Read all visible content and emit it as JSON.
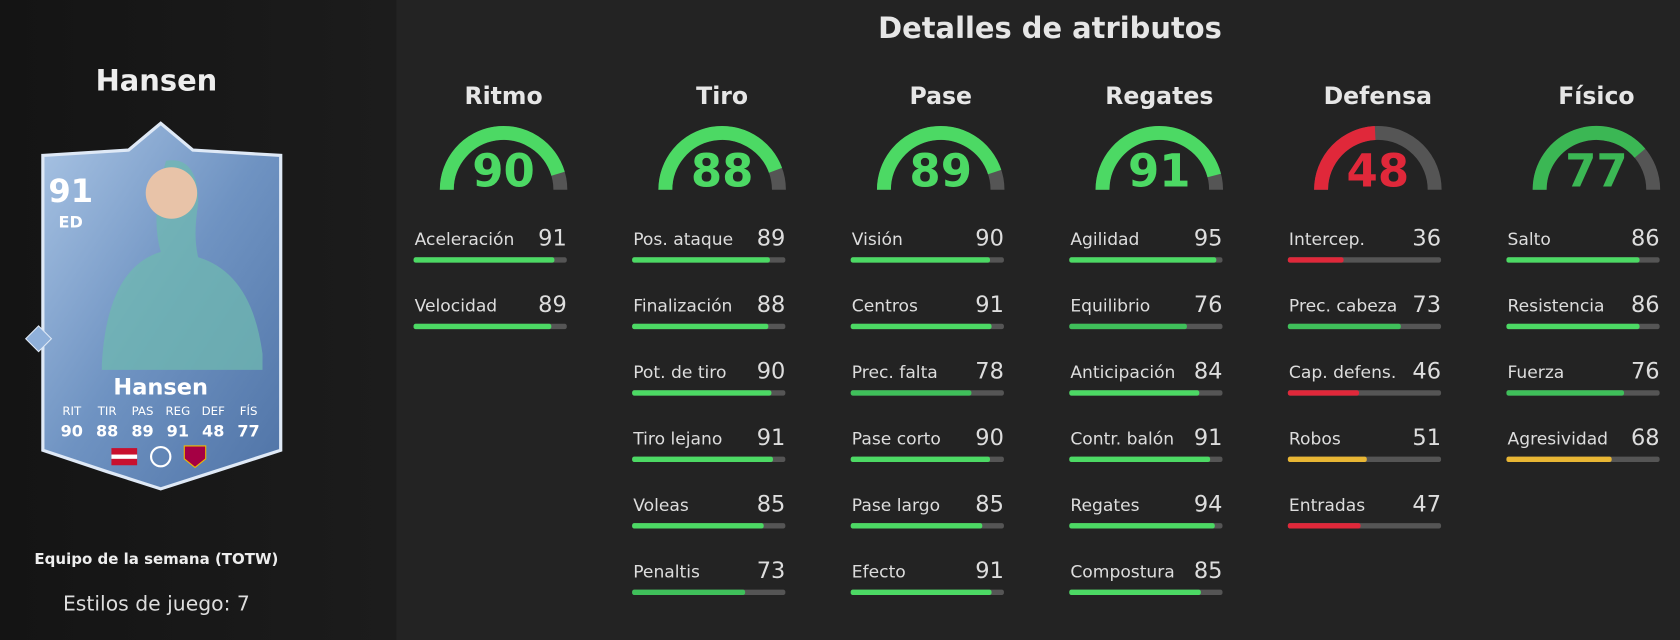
{
  "title": "Detalles de atributos",
  "range": [
    0,
    99
  ],
  "player": {
    "name": "Hansen",
    "program": "Equipo de la semana (TOTW)",
    "playstyles": "Estilos de juego: 7"
  },
  "card": {
    "rating": 91,
    "position": "ED",
    "name": "Hansen",
    "stats": [
      {
        "label": "RIT",
        "value": 90
      },
      {
        "label": "TIR",
        "value": 88
      },
      {
        "label": "PAS",
        "value": 89
      },
      {
        "label": "REG",
        "value": 91
      },
      {
        "label": "DEF",
        "value": 48
      },
      {
        "label": "FÍS",
        "value": 77
      }
    ]
  },
  "categories": [
    {
      "name": "Ritmo",
      "value": 90,
      "color": "#4cd964",
      "stats": [
        {
          "label": "Aceleración",
          "value": 91,
          "color": "#4cd964"
        },
        {
          "label": "Velocidad",
          "value": 89,
          "color": "#4cd964"
        }
      ]
    },
    {
      "name": "Tiro",
      "value": 88,
      "color": "#4cd964",
      "stats": [
        {
          "label": "Pos. ataque",
          "value": 89,
          "color": "#4cd964"
        },
        {
          "label": "Finalización",
          "value": 88,
          "color": "#4cd964"
        },
        {
          "label": "Pot. de tiro",
          "value": 90,
          "color": "#4cd964"
        },
        {
          "label": "Tiro lejano",
          "value": 91,
          "color": "#4cd964"
        },
        {
          "label": "Voleas",
          "value": 85,
          "color": "#4cd964"
        },
        {
          "label": "Penaltis",
          "value": 73,
          "color": "#3fbf5a"
        }
      ]
    },
    {
      "name": "Pase",
      "value": 89,
      "color": "#4cd964",
      "stats": [
        {
          "label": "Visión",
          "value": 90,
          "color": "#4cd964"
        },
        {
          "label": "Centros",
          "value": 91,
          "color": "#4cd964"
        },
        {
          "label": "Prec. falta",
          "value": 78,
          "color": "#3fbf5a"
        },
        {
          "label": "Pase corto",
          "value": 90,
          "color": "#4cd964"
        },
        {
          "label": "Pase largo",
          "value": 85,
          "color": "#4cd964"
        },
        {
          "label": "Efecto",
          "value": 91,
          "color": "#4cd964"
        }
      ]
    },
    {
      "name": "Regates",
      "value": 91,
      "color": "#4cd964",
      "stats": [
        {
          "label": "Agilidad",
          "value": 95,
          "color": "#4cd964"
        },
        {
          "label": "Equilibrio",
          "value": 76,
          "color": "#3fbf5a"
        },
        {
          "label": "Anticipación",
          "value": 84,
          "color": "#4cd964"
        },
        {
          "label": "Contr. balón",
          "value": 91,
          "color": "#4cd964"
        },
        {
          "label": "Regates",
          "value": 94,
          "color": "#4cd964"
        },
        {
          "label": "Compostura",
          "value": 85,
          "color": "#4cd964"
        }
      ]
    },
    {
      "name": "Defensa",
      "value": 48,
      "color": "#e0283a",
      "stats": [
        {
          "label": "Intercep.",
          "value": 36,
          "color": "#e0283a"
        },
        {
          "label": "Prec. cabeza",
          "value": 73,
          "color": "#3fbf5a"
        },
        {
          "label": "Cap. defens.",
          "value": 46,
          "color": "#e0283a"
        },
        {
          "label": "Robos",
          "value": 51,
          "color": "#e8b634"
        },
        {
          "label": "Entradas",
          "value": 47,
          "color": "#e0283a"
        }
      ]
    },
    {
      "name": "Físico",
      "value": 77,
      "color": "#3bb754",
      "stats": [
        {
          "label": "Salto",
          "value": 86,
          "color": "#4cd964"
        },
        {
          "label": "Resistencia",
          "value": 86,
          "color": "#4cd964"
        },
        {
          "label": "Fuerza",
          "value": 76,
          "color": "#3fbf5a"
        },
        {
          "label": "Agresividad",
          "value": 68,
          "color": "#e8b634"
        }
      ]
    }
  ]
}
